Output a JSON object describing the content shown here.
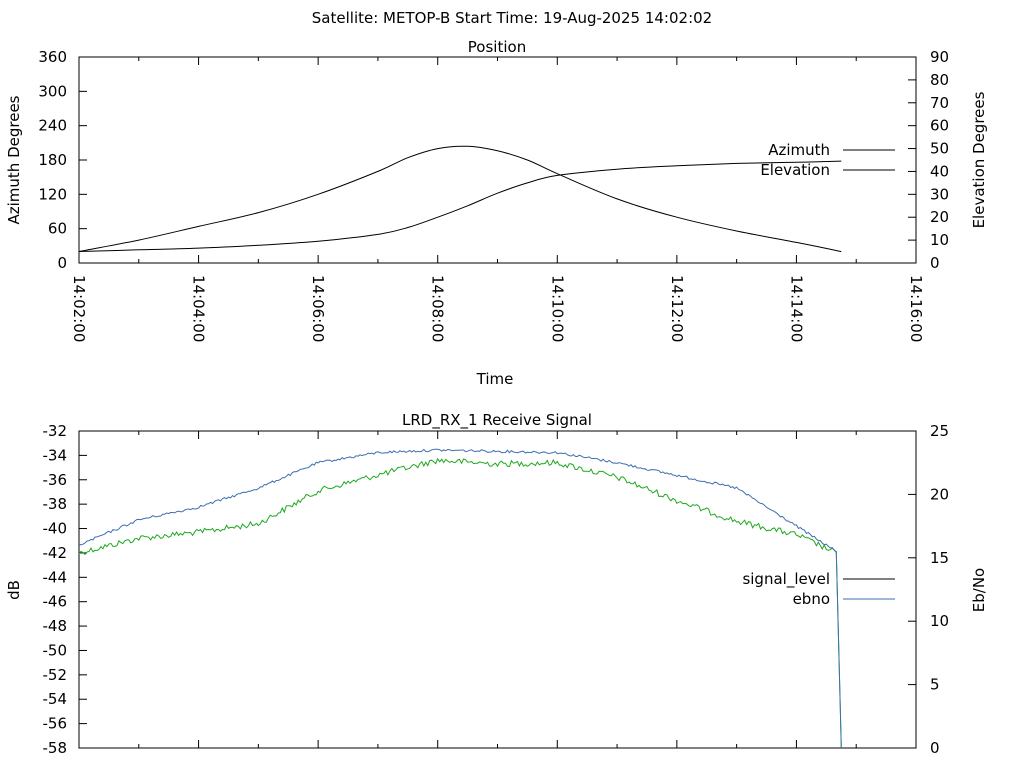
{
  "header": {
    "title": "Satellite: METOP-B    Start Time: 19-Aug-2025 14:02:02"
  },
  "colors": {
    "azimuth": "#b03a3a",
    "elevation": "#3d6fb0",
    "signal_level": "#000000",
    "ebno": "#3d6fb0",
    "signal_green": "#1fa81f"
  },
  "chart_data": [
    {
      "type": "line",
      "title": "Position",
      "xlabel": "Time",
      "ylabel": "Azimuth Degrees",
      "y2label": "Elevation Degrees",
      "ylim": [
        0,
        360
      ],
      "y2lim": [
        0,
        90
      ],
      "yticks": [
        "0",
        "60",
        "120",
        "180",
        "240",
        "300",
        "360"
      ],
      "y2ticks": [
        "0",
        "10",
        "20",
        "30",
        "40",
        "50",
        "60",
        "70",
        "80",
        "90"
      ],
      "xlim": [
        "14:02:00",
        "14:16:00"
      ],
      "xticks": [
        "14:02:00",
        "14:04:00",
        "14:06:00",
        "14:08:00",
        "14:10:00",
        "14:12:00",
        "14:14:00",
        "14:16:00"
      ],
      "legend_position": "right",
      "grid": false,
      "series": [
        {
          "name": "Azimuth",
          "axis": "left",
          "x": [
            "14:02:00",
            "14:03:00",
            "14:04:00",
            "14:05:00",
            "14:06:00",
            "14:07:00",
            "14:07:30",
            "14:08:00",
            "14:08:30",
            "14:09:00",
            "14:09:30",
            "14:10:00",
            "14:11:00",
            "14:12:00",
            "14:13:00",
            "14:14:00",
            "14:14:45"
          ],
          "values": [
            20,
            23,
            26,
            31,
            38,
            50,
            62,
            80,
            100,
            122,
            140,
            153,
            164,
            170,
            174,
            176,
            178
          ]
        },
        {
          "name": "Elevation",
          "axis": "right",
          "x": [
            "14:02:00",
            "14:03:00",
            "14:04:00",
            "14:05:00",
            "14:06:00",
            "14:07:00",
            "14:07:30",
            "14:08:00",
            "14:08:30",
            "14:09:00",
            "14:09:30",
            "14:10:00",
            "14:11:00",
            "14:12:00",
            "14:13:00",
            "14:14:00",
            "14:14:45"
          ],
          "values": [
            5,
            10,
            16,
            22,
            30,
            40,
            46,
            50,
            51,
            49,
            45,
            39,
            28,
            20,
            14,
            9,
            5
          ]
        }
      ]
    },
    {
      "type": "line",
      "title": "LRD_RX_1 Receive Signal",
      "ylabel": "dB",
      "y2label": "Eb/No",
      "ylim": [
        -58,
        -32
      ],
      "y2lim": [
        0,
        25
      ],
      "yticks": [
        "-58",
        "-56",
        "-54",
        "-52",
        "-50",
        "-48",
        "-46",
        "-44",
        "-42",
        "-40",
        "-38",
        "-36",
        "-34",
        "-32"
      ],
      "y2ticks": [
        "0",
        "5",
        "10",
        "15",
        "20",
        "25"
      ],
      "xlim": [
        "14:02:00",
        "14:16:00"
      ],
      "legend_position": "right",
      "grid": false,
      "series": [
        {
          "name": "signal_level",
          "axis": "left",
          "x": [
            "14:02:00",
            "14:03:00",
            "14:04:00",
            "14:05:00",
            "14:06:00",
            "14:07:00",
            "14:08:00",
            "14:09:00",
            "14:10:00",
            "14:11:00",
            "14:12:00",
            "14:13:00",
            "14:14:00",
            "14:14:40",
            "14:14:45"
          ],
          "values": [
            -42,
            -40.8,
            -40.3,
            -39.6,
            -36.9,
            -35.6,
            -34.4,
            -34.7,
            -34.6,
            -35.8,
            -37.7,
            -39.4,
            -40.5,
            -42,
            -58
          ]
        },
        {
          "name": "ebno",
          "axis": "right",
          "x": [
            "14:02:00",
            "14:03:00",
            "14:04:00",
            "14:05:00",
            "14:06:00",
            "14:07:00",
            "14:08:00",
            "14:09:00",
            "14:10:00",
            "14:11:00",
            "14:12:00",
            "14:13:00",
            "14:14:00",
            "14:14:40",
            "14:14:45"
          ],
          "values": [
            16,
            18,
            19,
            20.5,
            22.5,
            23.3,
            23.5,
            23.4,
            23.3,
            22.5,
            21.5,
            20.5,
            17.5,
            15.5,
            0
          ]
        }
      ]
    }
  ]
}
